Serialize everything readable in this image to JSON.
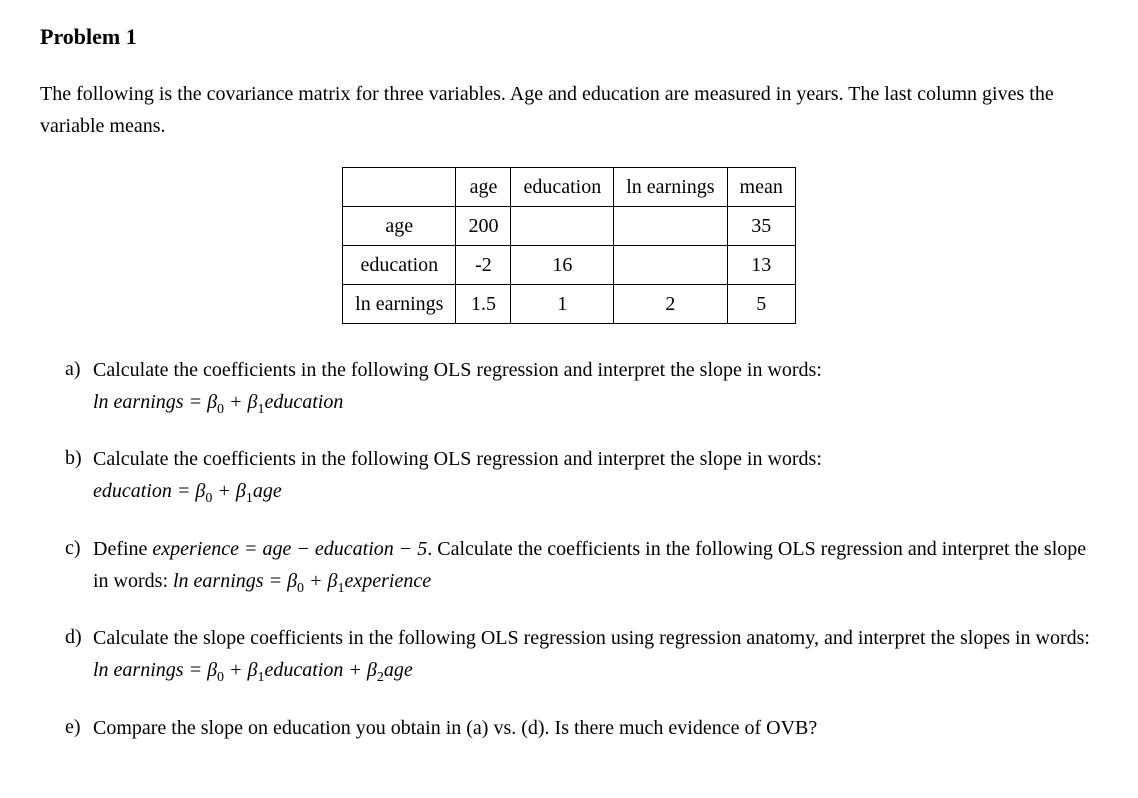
{
  "title": "Problem 1",
  "intro": "The following is the covariance matrix for three variables. Age and education are measured in years. The last column gives the variable means.",
  "table": {
    "headers": [
      "",
      "age",
      "education",
      "ln earnings",
      "mean"
    ],
    "rows": [
      [
        "age",
        "200",
        "",
        "",
        "35"
      ],
      [
        "education",
        "-2",
        "16",
        "",
        "13"
      ],
      [
        "ln earnings",
        "1.5",
        "1",
        "2",
        "5"
      ]
    ]
  },
  "questions": {
    "a": {
      "label": "a)",
      "text": "Calculate the coefficients in the following OLS regression and interpret the slope in words:",
      "equation_lhs": "ln earnings",
      "equation_rhs_parts": [
        " = ",
        "β",
        "0",
        " + ",
        "β",
        "1",
        "education"
      ]
    },
    "b": {
      "label": "b)",
      "text": "Calculate the coefficients in the following OLS regression and interpret the slope in words:",
      "equation_lhs": "education",
      "equation_rhs_parts": [
        " = ",
        "β",
        "0",
        " + ",
        "β",
        "1",
        "age"
      ]
    },
    "c": {
      "label": "c)",
      "text1": "Define ",
      "def_lhs": "experience",
      "def_rhs": " = age − education − 5",
      "text2": ". Calculate the coefficients in the following OLS regression and interpret the slope in words: ",
      "equation_lhs": "ln earnings",
      "equation_rhs_parts": [
        " = ",
        "β",
        "0",
        " + ",
        "β",
        "1",
        "experience"
      ]
    },
    "d": {
      "label": "d)",
      "text": "Calculate the slope coefficients in the following OLS regression using regression anatomy, and interpret the slopes in words: ",
      "equation_lhs": "ln earnings",
      "equation_rhs_parts": [
        " = ",
        "β",
        "0",
        " + ",
        "β",
        "1",
        "education",
        " + ",
        "β",
        "2",
        "age"
      ]
    },
    "e": {
      "label": "e)",
      "text": "Compare the slope on education you obtain in (a) vs. (d). Is there much evidence of OVB?"
    }
  }
}
